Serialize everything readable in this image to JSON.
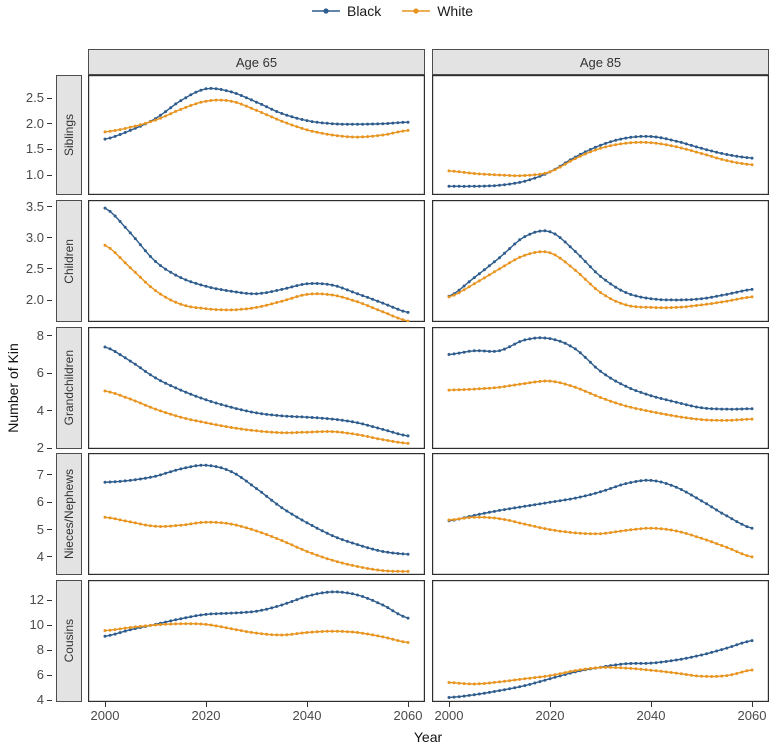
{
  "legend": {
    "items": [
      {
        "label": "Black",
        "color": "#2e5c8c"
      },
      {
        "label": "White",
        "color": "#e8941f"
      }
    ]
  },
  "axes": {
    "x_title": "Year",
    "y_title": "Number of Kin",
    "x_ticks": [
      "2000",
      "2020",
      "2040",
      "2060"
    ],
    "x_tick_values": [
      2000,
      2020,
      2040,
      2060
    ]
  },
  "chart_data": {
    "type": "line",
    "title": "",
    "xlabel": "Year",
    "ylabel": "Number of Kin",
    "grid": false,
    "legend_position": "top-center",
    "facet_columns": [
      "Age 65",
      "Age 85"
    ],
    "series_names": [
      "Black",
      "White"
    ],
    "colors": {
      "Black": "#2e5c8c",
      "White": "#e8941f"
    },
    "x": [
      2000,
      2005,
      2010,
      2015,
      2020,
      2025,
      2030,
      2035,
      2040,
      2045,
      2050,
      2055,
      2060
    ],
    "x_range": [
      2000,
      2060
    ],
    "rows": [
      {
        "label": "Siblings",
        "ylim": [
          0.61,
          2.95
        ],
        "yticks": [
          {
            "v": 2.5,
            "label": "2.5"
          },
          {
            "v": 2.0,
            "label": "2.0"
          },
          {
            "v": 1.5,
            "label": "1.5"
          },
          {
            "v": 1.0,
            "label": "1.0"
          }
        ],
        "panels": [
          {
            "column": "Age 65",
            "series": {
              "Black": [
                1.7,
                1.87,
                2.1,
                2.45,
                2.68,
                2.62,
                2.42,
                2.2,
                2.06,
                2.0,
                1.99,
                2.0,
                2.03
              ],
              "White": [
                1.84,
                1.93,
                2.07,
                2.28,
                2.44,
                2.44,
                2.26,
                2.05,
                1.88,
                1.78,
                1.74,
                1.78,
                1.87
              ]
            }
          },
          {
            "column": "Age 85",
            "series": {
              "Black": [
                0.78,
                0.78,
                0.8,
                0.88,
                1.06,
                1.35,
                1.58,
                1.72,
                1.75,
                1.66,
                1.52,
                1.4,
                1.33
              ],
              "White": [
                1.08,
                1.03,
                1.0,
                0.99,
                1.06,
                1.32,
                1.52,
                1.62,
                1.63,
                1.55,
                1.42,
                1.28,
                1.2
              ]
            }
          }
        ]
      },
      {
        "label": "Children",
        "ylim": [
          1.645,
          3.61
        ],
        "yticks": [
          {
            "v": 3.5,
            "label": "3.5"
          },
          {
            "v": 3.0,
            "label": "3.0"
          },
          {
            "v": 2.5,
            "label": "2.5"
          },
          {
            "v": 2.0,
            "label": "2.0"
          }
        ],
        "panels": [
          {
            "column": "Age 65",
            "series": {
              "Black": [
                3.48,
                3.08,
                2.62,
                2.36,
                2.22,
                2.14,
                2.1,
                2.17,
                2.26,
                2.24,
                2.1,
                1.95,
                1.8
              ],
              "White": [
                2.88,
                2.52,
                2.15,
                1.93,
                1.86,
                1.84,
                1.88,
                1.98,
                2.09,
                2.08,
                1.97,
                1.81,
                1.66
              ]
            }
          },
          {
            "column": "Age 85",
            "series": {
              "Black": [
                2.06,
                2.36,
                2.68,
                3.02,
                3.1,
                2.78,
                2.38,
                2.12,
                2.02,
                2.0,
                2.02,
                2.09,
                2.17
              ],
              "White": [
                2.05,
                2.26,
                2.5,
                2.72,
                2.76,
                2.48,
                2.12,
                1.92,
                1.88,
                1.88,
                1.92,
                1.98,
                2.05
              ]
            }
          }
        ]
      },
      {
        "label": "Grandchildren",
        "ylim": [
          1.95,
          8.47
        ],
        "yticks": [
          {
            "v": 8,
            "label": "8"
          },
          {
            "v": 6,
            "label": "6"
          },
          {
            "v": 4,
            "label": "4"
          },
          {
            "v": 2,
            "label": "2"
          }
        ],
        "panels": [
          {
            "column": "Age 65",
            "series": {
              "Black": [
                7.4,
                6.65,
                5.75,
                5.1,
                4.58,
                4.18,
                3.88,
                3.72,
                3.65,
                3.55,
                3.35,
                3.0,
                2.65
              ],
              "White": [
                5.05,
                4.62,
                4.08,
                3.65,
                3.35,
                3.1,
                2.92,
                2.82,
                2.85,
                2.88,
                2.72,
                2.45,
                2.25
              ]
            }
          },
          {
            "column": "Age 85",
            "series": {
              "Black": [
                7.0,
                7.2,
                7.2,
                7.78,
                7.85,
                7.3,
                6.1,
                5.3,
                4.8,
                4.45,
                4.15,
                4.08,
                4.1
              ],
              "White": [
                5.1,
                5.15,
                5.25,
                5.45,
                5.58,
                5.25,
                4.7,
                4.25,
                3.95,
                3.7,
                3.52,
                3.48,
                3.55
              ]
            }
          }
        ]
      },
      {
        "label": "Nieces/Nephews",
        "ylim": [
          3.34,
          7.8
        ],
        "yticks": [
          {
            "v": 7,
            "label": "7"
          },
          {
            "v": 6,
            "label": "6"
          },
          {
            "v": 5,
            "label": "5"
          },
          {
            "v": 4,
            "label": "4"
          }
        ],
        "panels": [
          {
            "column": "Age 65",
            "series": {
              "Black": [
                6.73,
                6.8,
                6.95,
                7.22,
                7.35,
                7.12,
                6.5,
                5.8,
                5.25,
                4.78,
                4.45,
                4.2,
                4.1
              ],
              "White": [
                5.45,
                5.28,
                5.12,
                5.16,
                5.27,
                5.2,
                4.95,
                4.6,
                4.2,
                3.88,
                3.65,
                3.5,
                3.47
              ]
            }
          },
          {
            "column": "Age 85",
            "series": {
              "Black": [
                5.32,
                5.52,
                5.7,
                5.85,
                6.0,
                6.15,
                6.38,
                6.68,
                6.8,
                6.55,
                6.05,
                5.5,
                5.05
              ],
              "White": [
                5.35,
                5.45,
                5.4,
                5.2,
                5.0,
                4.88,
                4.85,
                4.97,
                5.05,
                4.95,
                4.68,
                4.35,
                4.0
              ]
            }
          }
        ]
      },
      {
        "label": "Cousins",
        "ylim": [
          3.84,
          13.6
        ],
        "yticks": [
          {
            "v": 12,
            "label": "12"
          },
          {
            "v": 10,
            "label": "10"
          },
          {
            "v": 8,
            "label": "8"
          },
          {
            "v": 6,
            "label": "6"
          },
          {
            "v": 4,
            "label": "4"
          }
        ],
        "panels": [
          {
            "column": "Age 65",
            "series": {
              "Black": [
                9.1,
                9.62,
                10.05,
                10.5,
                10.85,
                10.95,
                11.1,
                11.6,
                12.3,
                12.65,
                12.4,
                11.6,
                10.55
              ],
              "White": [
                9.55,
                9.8,
                10.0,
                10.1,
                10.05,
                9.7,
                9.35,
                9.2,
                9.4,
                9.5,
                9.4,
                9.05,
                8.6
              ]
            }
          },
          {
            "column": "Age 85",
            "series": {
              "Black": [
                4.2,
                4.42,
                4.75,
                5.15,
                5.7,
                6.25,
                6.62,
                6.9,
                6.95,
                7.2,
                7.6,
                8.15,
                8.75
              ],
              "White": [
                5.4,
                5.28,
                5.45,
                5.7,
                5.95,
                6.35,
                6.6,
                6.55,
                6.38,
                6.15,
                5.9,
                5.95,
                6.4
              ]
            }
          }
        ]
      }
    ]
  }
}
